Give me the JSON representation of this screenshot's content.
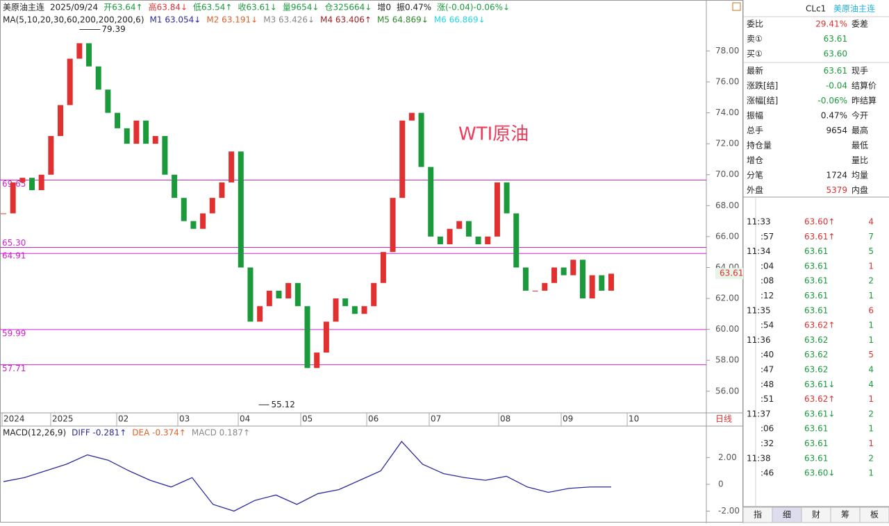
{
  "header": {
    "items": [
      {
        "text": "美原油主连",
        "color": "#222"
      },
      {
        "text": "2025/09/24",
        "color": "#222"
      },
      {
        "text": "开63.64↑",
        "color": "#1a9a3a"
      },
      {
        "text": "高63.84↓",
        "color": "#e03030"
      },
      {
        "text": "低63.54↑",
        "color": "#1a9a3a"
      },
      {
        "text": "收63.61↓",
        "color": "#1a9a3a"
      },
      {
        "text": "量9654↓",
        "color": "#1a9a3a"
      },
      {
        "text": "仓325664↓",
        "color": "#1a9a3a"
      },
      {
        "text": "增0",
        "color": "#222"
      },
      {
        "text": "振0.47%",
        "color": "#222"
      },
      {
        "text": "涨(-0.04)-0.06%↓",
        "color": "#1a9a3a"
      }
    ],
    "ma": [
      {
        "text": "MA(5,10,20,30,60,200,200,200,6)",
        "color": "#222"
      },
      {
        "text": "M1 63.054↓",
        "color": "#2a2aa0"
      },
      {
        "text": "M2 63.191↓",
        "color": "#e0602a"
      },
      {
        "text": "M3 63.426↓",
        "color": "#888"
      },
      {
        "text": "M4 63.406↑",
        "color": "#a02020"
      },
      {
        "text": "M5 64.869↓",
        "color": "#2a8a2a"
      },
      {
        "text": "M6 66.869↓",
        "color": "#20d8e8"
      }
    ]
  },
  "chart_data": {
    "type": "candlestick",
    "closes": [
      67.5,
      69.5,
      69.8,
      69.0,
      70.0,
      72.5,
      74.5,
      77.5,
      78.5,
      77.0,
      75.5,
      74.0,
      73.0,
      72.0,
      73.5,
      72.0,
      72.5,
      70.0,
      68.5,
      67.0,
      66.5,
      67.5,
      68.5,
      69.5,
      71.5,
      64.0,
      60.5,
      61.5,
      62.5,
      62.0,
      63.0,
      61.5,
      57.5,
      58.5,
      60.5,
      62.0,
      61.5,
      61.0,
      61.5,
      63.0,
      65.0,
      68.5,
      73.5,
      74.0,
      70.5,
      66.0,
      65.5,
      66.5,
      67.0,
      66.0,
      65.5,
      66.0,
      69.5,
      67.5,
      64.0,
      62.5,
      62.5,
      63.0,
      64.0,
      63.5,
      64.5,
      62.0,
      63.5,
      62.5,
      63.6
    ],
    "up_color": "#e03030",
    "down_color": "#1a9a3a",
    "ylim": [
      54.6,
      79.5
    ],
    "yticks": [
      {
        "value": 56,
        "label": "56.00"
      },
      {
        "value": 58,
        "label": "58.00"
      },
      {
        "value": 60,
        "label": "60.00"
      },
      {
        "value": 62,
        "label": "62.00"
      },
      {
        "value": 64,
        "label": "64.00"
      },
      {
        "value": 66,
        "label": "66.00"
      },
      {
        "value": 68,
        "label": "68.00"
      },
      {
        "value": 70,
        "label": "70.00"
      },
      {
        "value": 72,
        "label": "72.00"
      },
      {
        "value": 74,
        "label": "74.00"
      },
      {
        "value": 76,
        "label": "76.00"
      },
      {
        "value": 78,
        "label": "78.00"
      }
    ],
    "levels": [
      69.65,
      {
        "value": 65.3,
        "label": "65.30"
      },
      64.91,
      59.99,
      57.71
    ],
    "high_label": 79.39,
    "low_label": 55.12,
    "last": 63.61,
    "xlabels": [
      "2024",
      "2025",
      "02",
      "03",
      "04",
      "05",
      "06",
      "07",
      "08",
      "09",
      "10"
    ],
    "period": "日线",
    "annotation": "WTI原油",
    "macd": {
      "legend": [
        {
          "text": "MACD(12,26,9)",
          "color": "#222"
        },
        {
          "text": "DIFF -0.281↑",
          "color": "#2a2aa0"
        },
        {
          "text": "DEA -0.374↑",
          "color": "#e0602a"
        },
        {
          "text": "MACD 0.187↑",
          "color": "#888"
        }
      ],
      "diff": [
        0.2,
        0.5,
        1.0,
        1.5,
        2.2,
        1.8,
        1.0,
        0.3,
        -0.2,
        0.5,
        -1.5,
        -2.0,
        -1.2,
        -0.8,
        -1.5,
        -0.7,
        -0.4,
        0.3,
        1.0,
        3.2,
        1.5,
        0.8,
        0.5,
        0.3,
        0.6,
        -0.2,
        -0.6,
        -0.3,
        -0.2,
        -0.2
      ],
      "ylim": [
        -2.7,
        4.3
      ],
      "yticks": [
        {
          "value": -2,
          "label": "-2.00"
        },
        0,
        {
          "value": 2,
          "label": "2.00"
        }
      ]
    }
  },
  "quote": {
    "code": "CLc1",
    "name": "美原油主连",
    "rows": [
      [
        "委比",
        "29.41%",
        "委差"
      ],
      [
        "卖①",
        "63.61",
        ""
      ],
      [
        "买①",
        "63.60",
        ""
      ],
      [
        "最新",
        "63.61",
        "现手"
      ],
      [
        "涨跌[结]",
        "-0.04",
        "结算价"
      ],
      [
        "涨幅[结]",
        "-0.06%",
        "昨结算"
      ],
      [
        "振幅",
        "0.47%",
        "今开"
      ],
      [
        "总手",
        "9654",
        "最高"
      ],
      [
        "持仓量",
        "",
        "最低"
      ],
      [
        "增仓",
        "",
        "量比"
      ],
      [
        "分笔",
        "1724",
        "均量"
      ],
      [
        "外盘",
        "5379",
        "内盘"
      ]
    ]
  },
  "trades": [
    [
      "11:33",
      "63.60↑",
      "4"
    ],
    [
      ":57",
      "63.61↑",
      "7"
    ],
    [
      "11:34",
      "63.61",
      "5"
    ],
    [
      ":04",
      "63.61",
      "1"
    ],
    [
      ":08",
      "63.61",
      "2"
    ],
    [
      ":12",
      "63.61",
      "1"
    ],
    [
      "11:35",
      "63.61",
      "6"
    ],
    [
      ":54",
      "63.62↑",
      "1"
    ],
    [
      "11:36",
      "63.62",
      "1"
    ],
    [
      ":40",
      "63.62",
      "5"
    ],
    [
      ":47",
      "63.62",
      "4"
    ],
    [
      ":48",
      "63.61↓",
      "4"
    ],
    [
      ":51",
      "63.62↑",
      "1"
    ],
    [
      "11:37",
      "63.61↓",
      "2"
    ],
    [
      ":06",
      "63.61",
      "1"
    ],
    [
      ":32",
      "63.61",
      "1"
    ],
    [
      "11:38",
      "63.61",
      "2"
    ],
    [
      ":46",
      "63.60↓",
      "1"
    ]
  ],
  "tabs": [
    "指",
    "细",
    "财",
    "筹",
    "板"
  ]
}
